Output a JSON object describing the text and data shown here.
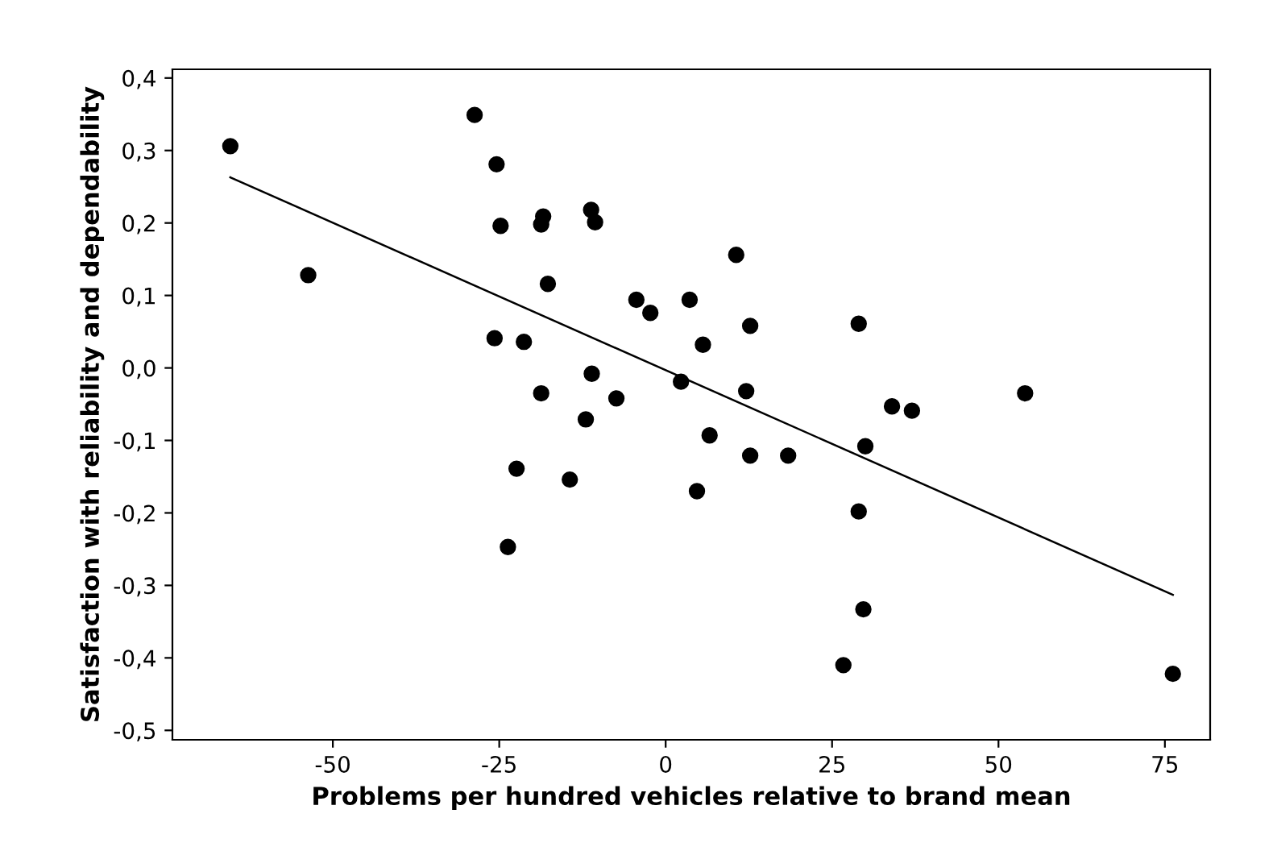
{
  "chart_data": {
    "type": "scatter",
    "xlabel": "Problems per hundred vehicles relative to brand mean",
    "ylabel": "Satisfaction with reliability and dependability",
    "xlim": [
      -74.1,
      81.8
    ],
    "ylim": [
      -0.513,
      0.412
    ],
    "xticks": [
      -50,
      -25,
      0,
      25,
      50,
      75
    ],
    "yticks": [
      {
        "value": -0.5,
        "label": "-0,5"
      },
      {
        "value": -0.4,
        "label": "-0,4"
      },
      {
        "value": -0.3,
        "label": "-0,3"
      },
      {
        "value": -0.2,
        "label": "-0,2"
      },
      {
        "value": -0.1,
        "label": "-0,1"
      },
      {
        "value": 0,
        "label": "0,0"
      },
      {
        "value": 0.1,
        "label": "0,1"
      },
      {
        "value": 0.2,
        "label": "0,2"
      },
      {
        "value": 0.3,
        "label": "0,3"
      },
      {
        "value": 0.4,
        "label": "0,4"
      }
    ],
    "grid": false,
    "legend": false,
    "series": [
      {
        "marker": "circle",
        "color": "#000000",
        "x": [
          -65.4,
          -53.7,
          -28.7,
          -25.4,
          -24.8,
          -18.4,
          -18.7,
          -11.2,
          -10.6,
          -17.7,
          -25.7,
          -21.3,
          -11.1,
          -18.7,
          -7.4,
          -12.0,
          10.6,
          -4.4,
          -2.3,
          3.6,
          12.7,
          29.0,
          5.6,
          2.3,
          12.1,
          54.0,
          34.0,
          37.0,
          6.6,
          12.7,
          18.4,
          30.0,
          4.7,
          29.0,
          -22.4,
          -14.4,
          -23.7,
          29.7,
          26.7,
          76.2
        ],
        "values": [
          0.306,
          0.128,
          0.349,
          0.281,
          0.196,
          0.209,
          0.198,
          0.218,
          0.201,
          0.116,
          0.041,
          0.036,
          -0.008,
          -0.035,
          -0.042,
          -0.071,
          0.156,
          0.094,
          0.076,
          0.094,
          0.058,
          0.061,
          0.032,
          -0.019,
          -0.032,
          -0.035,
          -0.053,
          -0.059,
          -0.093,
          -0.121,
          -0.121,
          -0.108,
          -0.17,
          -0.198,
          -0.139,
          -0.154,
          -0.247,
          -0.333,
          -0.41,
          -0.422
        ]
      },
      {
        "type": "line",
        "marker": "none",
        "color": "#000000",
        "x": [
          -65.4,
          76.2
        ],
        "values": [
          0.263,
          -0.313
        ]
      }
    ]
  }
}
